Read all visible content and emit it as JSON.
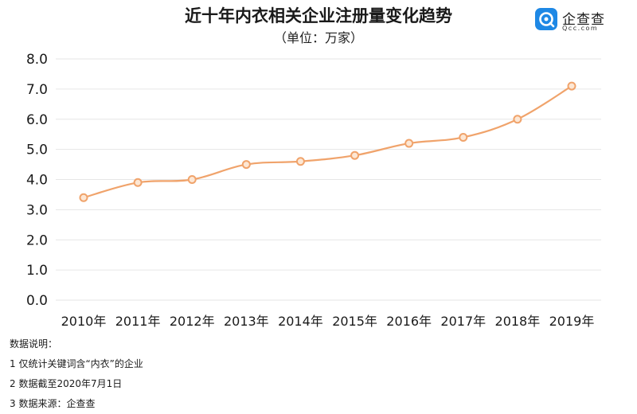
{
  "header": {
    "title": "近十年内衣相关企业注册量变化趋势",
    "subtitle": "（单位：万家）"
  },
  "brand": {
    "name": "企查查",
    "domain": "Qcc.com",
    "icon": "qcc-logo-icon",
    "color": "#1e88e5"
  },
  "chart_data": {
    "type": "line",
    "title": "近十年内衣相关企业注册量变化趋势",
    "subtitle": "（单位：万家）",
    "categories": [
      "2010年",
      "2011年",
      "2012年",
      "2013年",
      "2014年",
      "2015年",
      "2016年",
      "2017年",
      "2018年",
      "2019年"
    ],
    "series": [
      {
        "values": [
          3.4,
          3.9,
          4.0,
          4.5,
          4.6,
          4.8,
          5.2,
          5.4,
          6.0,
          7.1
        ]
      }
    ],
    "ylim": [
      0,
      8
    ],
    "yticks": [
      "0.0",
      "1.0",
      "2.0",
      "3.0",
      "4.0",
      "5.0",
      "6.0",
      "7.0",
      "8.0"
    ],
    "grid": true,
    "legend": "none",
    "line_color": "#f0a36b",
    "marker_fill": "#fde7d4"
  },
  "notes": {
    "heading": "数据说明：",
    "items": [
      "1 仅统计关键词含“内衣”的企业",
      "2 数据截至2020年7月1日",
      "3 数据来源：企查查"
    ]
  }
}
